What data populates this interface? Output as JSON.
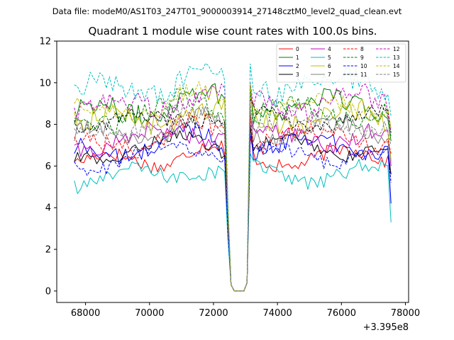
{
  "figure": {
    "suptitle": "Data file: modeM0/AS1T03_247T01_9000003914_27148cztM0_level2_quad_clean.evt"
  },
  "chart_data": {
    "type": "line",
    "title": "Quadrant 1 module wise count rates with 100.0s bins.",
    "xlabel": "",
    "ylabel": "",
    "x_offset_label": "+3.395e8",
    "x_offset": 339500000,
    "xlim": [
      67100,
      78100
    ],
    "ylim": [
      -0.55,
      12.0
    ],
    "x_ticks": [
      68000,
      70000,
      72000,
      74000,
      76000,
      78000
    ],
    "x_tick_labels": [
      "68000",
      "70000",
      "72000",
      "74000",
      "76000",
      "78000"
    ],
    "y_ticks": [
      0,
      2,
      4,
      6,
      8,
      10,
      12
    ],
    "y_tick_labels": [
      "0",
      "2",
      "4",
      "6",
      "8",
      "10",
      "12"
    ],
    "grid": false,
    "legend_location": "top-right",
    "x_start": 67650,
    "bin_width": 100,
    "n_points": 100,
    "dips": {
      "fall_start_index": 48,
      "zero_indices": [
        50,
        51,
        52,
        53
      ],
      "rise_index": 54,
      "spike_index": 55
    },
    "series": [
      {
        "name": "0",
        "color": "#ff0000",
        "dash": "solid",
        "mean": 6.4,
        "amp": 0.35,
        "start": 6.2,
        "end": 5.6
      },
      {
        "name": "1",
        "color": "#008000",
        "dash": "solid",
        "mean": 8.9,
        "amp": 0.55,
        "start": 8.0,
        "end": 7.2
      },
      {
        "name": "2",
        "color": "#0000ff",
        "dash": "solid",
        "mean": 7.0,
        "amp": 0.45,
        "start": 6.6,
        "end": 4.2
      },
      {
        "name": "3",
        "color": "#000000",
        "dash": "solid",
        "mean": 6.9,
        "amp": 0.3,
        "start": 6.2,
        "end": 5.6
      },
      {
        "name": "4",
        "color": "#bf00bf",
        "dash": "solid",
        "mean": 7.4,
        "amp": 0.45,
        "start": 7.0,
        "end": 6.0
      },
      {
        "name": "5",
        "color": "#00bfbf",
        "dash": "solid",
        "mean": 5.6,
        "amp": 0.35,
        "start": 5.3,
        "end": 3.3
      },
      {
        "name": "6",
        "color": "#bfbf00",
        "dash": "solid",
        "mean": 8.3,
        "amp": 0.55,
        "start": 8.6,
        "end": 6.3
      },
      {
        "name": "7",
        "color": "#808080",
        "dash": "solid",
        "mean": 7.7,
        "amp": 0.4,
        "start": 7.2,
        "end": 6.2
      },
      {
        "name": "8",
        "color": "#ff0000",
        "dash": "dashed",
        "mean": 7.4,
        "amp": 0.5,
        "start": 7.4,
        "end": 6.6
      },
      {
        "name": "9",
        "color": "#008000",
        "dash": "dashed",
        "mean": 8.6,
        "amp": 0.45,
        "start": 8.3,
        "end": 7.4
      },
      {
        "name": "10",
        "color": "#0000ff",
        "dash": "dashed",
        "mean": 6.5,
        "amp": 0.35,
        "start": 6.2,
        "end": 5.2
      },
      {
        "name": "11",
        "color": "#000000",
        "dash": "dashed",
        "mean": 8.2,
        "amp": 0.35,
        "start": 8.2,
        "end": 7.6
      },
      {
        "name": "12",
        "color": "#bf00bf",
        "dash": "dashed",
        "mean": 9.0,
        "amp": 0.55,
        "start": 8.8,
        "end": 7.6
      },
      {
        "name": "13",
        "color": "#00bfbf",
        "dash": "dashed",
        "mean": 9.9,
        "amp": 0.55,
        "start": 9.9,
        "end": 8.4
      },
      {
        "name": "14",
        "color": "#bfbf00",
        "dash": "dashed",
        "mean": 8.9,
        "amp": 0.45,
        "start": 9.0,
        "end": 7.8
      },
      {
        "name": "15",
        "color": "#808080",
        "dash": "dashed",
        "mean": 8.0,
        "amp": 0.4,
        "start": 7.8,
        "end": 7.0
      }
    ]
  }
}
